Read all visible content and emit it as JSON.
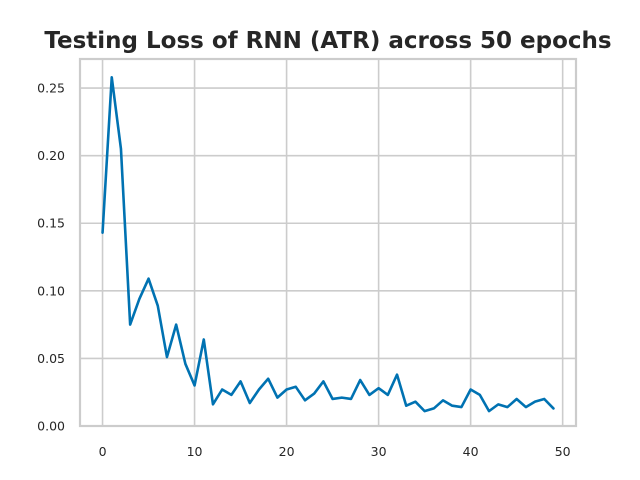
{
  "chart_data": {
    "type": "line",
    "title": "Testing Loss of RNN (ATR) across 50 epochs",
    "xlabel": "",
    "ylabel": "",
    "xlim": [
      -2.45,
      51.45
    ],
    "ylim": [
      0,
      0.2715
    ],
    "x_ticks": [
      0,
      10,
      20,
      30,
      40,
      50
    ],
    "x_tick_labels": [
      "0",
      "10",
      "20",
      "30",
      "40",
      "50"
    ],
    "y_ticks": [
      0,
      0.05,
      0.1,
      0.15,
      0.2,
      0.25
    ],
    "y_tick_labels": [
      "0.00",
      "0.05",
      "0.10",
      "0.15",
      "0.20",
      "0.25"
    ],
    "grid": true,
    "legend": "none",
    "series": [
      {
        "color": "#0072b2",
        "x": [
          0,
          1,
          2,
          3,
          4,
          5,
          6,
          7,
          8,
          9,
          10,
          11,
          12,
          13,
          14,
          15,
          16,
          17,
          18,
          19,
          20,
          21,
          22,
          23,
          24,
          25,
          26,
          27,
          28,
          29,
          30,
          31,
          32,
          33,
          34,
          35,
          36,
          37,
          38,
          39,
          40,
          41,
          42,
          43,
          44,
          45,
          46,
          47,
          48,
          49
        ],
        "values": [
          0.143,
          0.258,
          0.205,
          0.075,
          0.094,
          0.109,
          0.089,
          0.051,
          0.075,
          0.046,
          0.03,
          0.064,
          0.016,
          0.027,
          0.023,
          0.033,
          0.017,
          0.027,
          0.035,
          0.021,
          0.027,
          0.029,
          0.019,
          0.024,
          0.033,
          0.02,
          0.021,
          0.02,
          0.034,
          0.023,
          0.028,
          0.023,
          0.038,
          0.015,
          0.018,
          0.011,
          0.013,
          0.019,
          0.015,
          0.014,
          0.027,
          0.023,
          0.011,
          0.016,
          0.014,
          0.02,
          0.014,
          0.018,
          0.02,
          0.013
        ]
      }
    ]
  }
}
